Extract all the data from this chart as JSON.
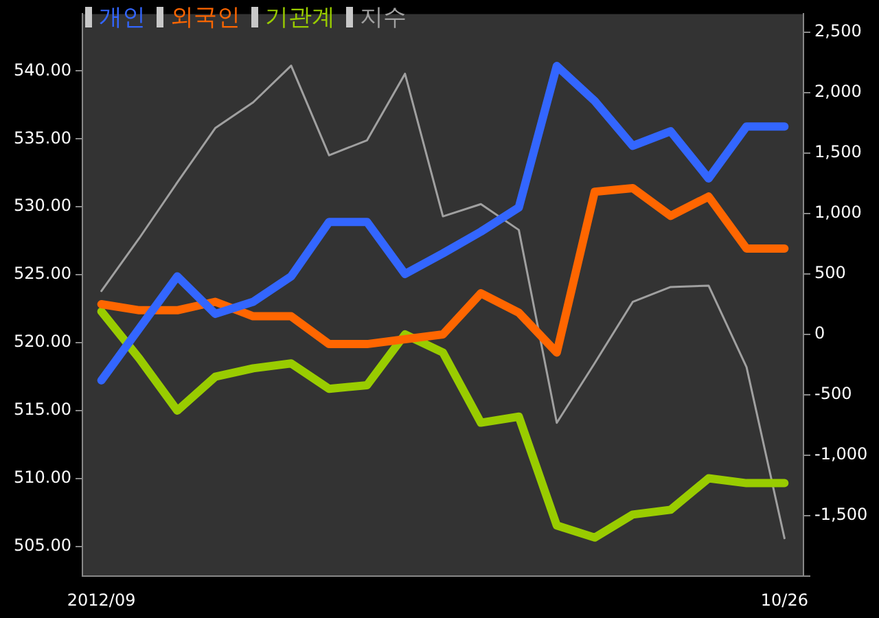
{
  "chart_data": {
    "type": "line",
    "categories": [
      "2012/09",
      null,
      null,
      null,
      null,
      null,
      null,
      null,
      null,
      null,
      null,
      null,
      null,
      null,
      null,
      null,
      null,
      null,
      "10/26"
    ],
    "series": [
      {
        "name": "개인",
        "color": "#3366ff",
        "axis": "y2",
        "values": [
          -380,
          50,
          480,
          170,
          270,
          480,
          930,
          930,
          500,
          670,
          850,
          1050,
          2220,
          1930,
          1560,
          1680,
          1290,
          1720,
          1720
        ]
      },
      {
        "name": "외국인",
        "color": "#ff6600",
        "axis": "y2",
        "values": [
          250,
          200,
          200,
          270,
          150,
          150,
          -80,
          -80,
          -40,
          0,
          340,
          180,
          -150,
          1180,
          1210,
          980,
          1140,
          710,
          710
        ]
      },
      {
        "name": "기관계",
        "color": "#99cc00",
        "axis": "y2",
        "values": [
          190,
          -200,
          -630,
          -350,
          -280,
          -240,
          -450,
          -420,
          0,
          -150,
          -730,
          -680,
          -1580,
          -1680,
          -1490,
          -1450,
          -1190,
          -1230,
          -1230
        ]
      },
      {
        "name": "지수",
        "color": "#a0a0a0",
        "axis": "y",
        "values": [
          523.8,
          527.7,
          531.8,
          535.8,
          537.7,
          540.4,
          533.8,
          534.9,
          539.8,
          529.3,
          530.2,
          528.3,
          514.1,
          518.5,
          523.0,
          524.1,
          524.2,
          518.2,
          505.6
        ]
      }
    ],
    "ylim": [
      502.8,
      544.2
    ],
    "yticks": [
      {
        "value": 505,
        "label": "505.00"
      },
      {
        "value": 510,
        "label": "510.00"
      },
      {
        "value": 515,
        "label": "515.00"
      },
      {
        "value": 520,
        "label": "520.00"
      },
      {
        "value": 525,
        "label": "525.00"
      },
      {
        "value": 530,
        "label": "530.00"
      },
      {
        "value": 535,
        "label": "535.00"
      },
      {
        "value": 540,
        "label": "540.00"
      }
    ],
    "y2lim": [
      -2000,
      2650
    ],
    "y2ticks": [
      {
        "value": -2000,
        "label": null
      },
      {
        "value": -1500,
        "label": "-1,500"
      },
      {
        "value": -1000,
        "label": "-1,000"
      },
      {
        "value": -500,
        "label": "-500"
      },
      0,
      500,
      {
        "value": 1000,
        "label": "1,000"
      },
      {
        "value": 1500,
        "label": "1,500"
      },
      {
        "value": 2000,
        "label": "2,000"
      },
      {
        "value": 2500,
        "label": "2,500"
      }
    ],
    "legend": "top left",
    "grid": false,
    "marker": "none"
  }
}
